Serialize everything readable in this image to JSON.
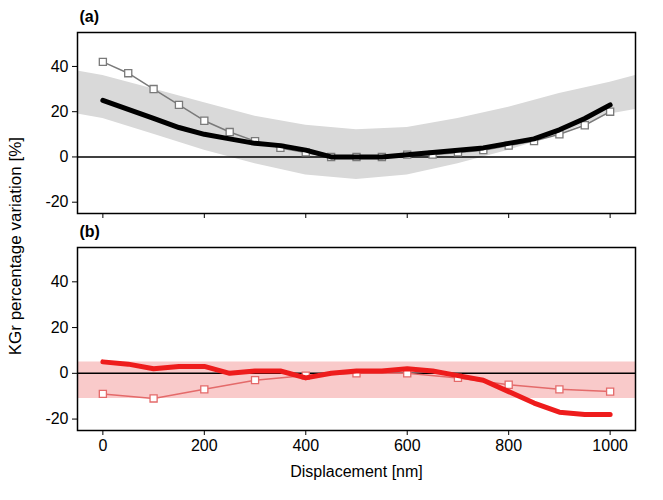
{
  "chart_data": [
    {
      "type": "line",
      "title": "(a)",
      "y_label": "KGr percentage variation [%]",
      "xlim": [
        -50,
        1050
      ],
      "xticks": [
        0,
        200,
        400,
        600,
        800,
        1000
      ],
      "ylim": [
        -25,
        55
      ],
      "yticks": [
        -20,
        0,
        20,
        40
      ],
      "tick_labels": "y",
      "grid": false,
      "reference_line": 0,
      "band": {
        "color": "#d9d9d9",
        "x": [
          -50,
          0,
          100,
          200,
          300,
          400,
          500,
          600,
          700,
          800,
          900,
          1000,
          1050
        ],
        "lower": [
          19,
          17,
          10,
          3,
          -3,
          -8,
          -10,
          -8,
          -3,
          3,
          10,
          19,
          21
        ],
        "upper": [
          38,
          36,
          30,
          24,
          18,
          14,
          12,
          13,
          17,
          22,
          28,
          33,
          36
        ]
      },
      "series": [
        {
          "color": "#7a7a7a",
          "marker": "square",
          "line_style": "solid",
          "x": [
            0,
            50,
            100,
            150,
            200,
            250,
            300,
            350,
            400,
            450,
            500,
            550,
            600,
            650,
            700,
            750,
            800,
            850,
            900,
            950,
            1000
          ],
          "values": [
            42,
            37,
            30,
            23,
            16,
            11,
            7,
            4,
            2,
            0,
            0,
            0,
            1,
            1,
            2,
            3,
            5,
            7,
            10,
            14,
            20
          ]
        },
        {
          "color": "#000000",
          "marker": "none",
          "line_style": "solid",
          "x": [
            0,
            50,
            100,
            150,
            200,
            250,
            300,
            350,
            400,
            450,
            500,
            550,
            600,
            650,
            700,
            750,
            800,
            850,
            900,
            950,
            1000
          ],
          "values": [
            25,
            21,
            17,
            13,
            10,
            8,
            6,
            5,
            3,
            0,
            0,
            0,
            1,
            2,
            3,
            4,
            6,
            8,
            12,
            17,
            23
          ]
        }
      ]
    },
    {
      "type": "line",
      "title": "(b)",
      "x_label": "Displacement [nm]",
      "xlim": [
        -50,
        1050
      ],
      "xticks": [
        0,
        200,
        400,
        600,
        800,
        1000
      ],
      "ylim": [
        -25,
        55
      ],
      "yticks": [
        -20,
        0,
        20,
        40
      ],
      "tick_labels": true,
      "grid": false,
      "reference_line": 0,
      "band": {
        "color": "#f9caca",
        "x": [
          -50,
          1050
        ],
        "lower": [
          -11,
          -11
        ],
        "upper": [
          5,
          5
        ]
      },
      "series": [
        {
          "color": "#e46a6a",
          "marker": "square",
          "line_style": "solid",
          "x": [
            0,
            100,
            200,
            300,
            400,
            500,
            600,
            700,
            800,
            900,
            1000
          ],
          "values": [
            -9,
            -11,
            -7,
            -3,
            -1,
            0,
            0,
            -2,
            -5,
            -7,
            -8
          ]
        },
        {
          "color": "#ee1c1c",
          "marker": "none",
          "line_style": "solid",
          "x": [
            0,
            50,
            100,
            150,
            200,
            250,
            300,
            350,
            400,
            450,
            500,
            550,
            600,
            650,
            700,
            750,
            800,
            850,
            900,
            950,
            1000
          ],
          "values": [
            5,
            4,
            2,
            3,
            3,
            0,
            1,
            1,
            -2,
            0,
            1,
            1,
            2,
            1,
            -1,
            -3,
            -8,
            -13,
            -17,
            -18,
            -18
          ]
        }
      ]
    }
  ]
}
